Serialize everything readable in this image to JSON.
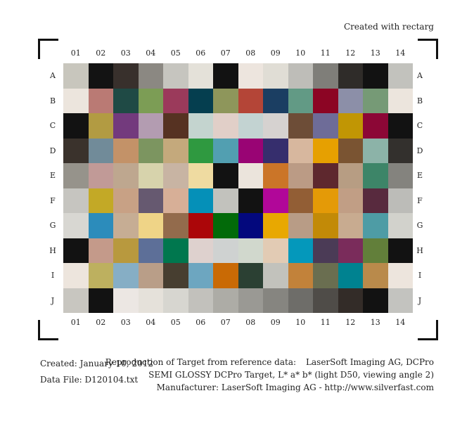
{
  "header": {
    "created_with": "Created with rectarg"
  },
  "columns": [
    "01",
    "02",
    "03",
    "04",
    "05",
    "06",
    "07",
    "08",
    "09",
    "10",
    "11",
    "12",
    "13",
    "14"
  ],
  "rows": [
    "A",
    "B",
    "C",
    "D",
    "E",
    "F",
    "G",
    "H",
    "I",
    "J"
  ],
  "patch_colors": [
    [
      "#c8c6bd",
      "#131313",
      "#38302c",
      "#8b8882",
      "#c6c5bf",
      "#e4e1d9",
      "#121212",
      "#ede5de",
      "#e0ddd5",
      "#bebdb8",
      "#7f7e79",
      "#2f2c29",
      "#121212",
      "#c2c2bd"
    ],
    [
      "#ece5dd",
      "#ba7a74",
      "#1f4a45",
      "#7c9d55",
      "#9b3a5b",
      "#053e4f",
      "#8e965b",
      "#b44537",
      "#1b3e62",
      "#629a85",
      "#8c0524",
      "#8c8fa8",
      "#769a76",
      "#ece5dd"
    ],
    [
      "#121212",
      "#b29b42",
      "#733a7d",
      "#b39cb1",
      "#563222",
      "#c4d4cf",
      "#e1cfc8",
      "#c3d3d2",
      "#d6d2d0",
      "#6d4d37",
      "#6e6c98",
      "#c19604",
      "#8c0736",
      "#121212"
    ],
    [
      "#3a322c",
      "#718b99",
      "#c39268",
      "#7c9560",
      "#c4a97c",
      "#2f9940",
      "#529fb1",
      "#990474",
      "#362e6d",
      "#d7b79e",
      "#e6a001",
      "#7a5432",
      "#8cb3a8",
      "#33302d"
    ],
    [
      "#96938b",
      "#c19a97",
      "#bea78f",
      "#d7d3ac",
      "#c8b4a3",
      "#efdba1",
      "#121212",
      "#ebe4dc",
      "#cb7528",
      "#bb9b85",
      "#5e282e",
      "#b79d83",
      "#3d8568",
      "#84837e"
    ],
    [
      "#c6c5c0",
      "#c3a926",
      "#c8a185",
      "#665970",
      "#d7af97",
      "#0590b8",
      "#c2c2bd",
      "#121212",
      "#b10799",
      "#925e35",
      "#e49a07",
      "#c19e85",
      "#582a3e",
      "#bcbcb8"
    ],
    [
      "#d8d7d2",
      "#2c8cbb",
      "#c6ad94",
      "#efd487",
      "#936b4c",
      "#ab0609",
      "#026a09",
      "#03087d",
      "#e8a801",
      "#b89c86",
      "#c28a07",
      "#c8ab90",
      "#4e9ca5",
      "#d2d2cc"
    ],
    [
      "#121212",
      "#c49a8a",
      "#b8993e",
      "#5d6f98",
      "#00774e",
      "#ded1ce",
      "#cfd2d1",
      "#d1d8cd",
      "#e2cbb4",
      "#0498bb",
      "#4b3b56",
      "#7a2c5b",
      "#627f3a",
      "#121212"
    ],
    [
      "#ede5dd",
      "#bdb05f",
      "#86aec5",
      "#b99e88",
      "#473e30",
      "#6da6c0",
      "#c96a05",
      "#2b4033",
      "#c2c2bc",
      "#c2823a",
      "#6a6e50",
      "#008290",
      "#b98a4b",
      "#ede5dd"
    ],
    [
      "#c8c6c0",
      "#121212",
      "#ece7e3",
      "#e5e1da",
      "#d7d6d0",
      "#c2c1bc",
      "#adaca6",
      "#9a9994",
      "#868580",
      "#6e6d69",
      "#4f4c48",
      "#332c28",
      "#121212",
      "#c3c3bf"
    ]
  ],
  "footer": {
    "created": "Created: January 10, 2012",
    "data_file": "Data File: D120104.txt",
    "reproduction_label": "Reproduction of Target from reference data:",
    "reproduction_value": "LaserSoft Imaging AG, DCPro",
    "target_desc": "SEMI GLOSSY DCPro Target, L* a* b* (light D50, viewing angle 2)",
    "manufacturer": "Manufacturer: LaserSoft Imaging AG - http://www.silverfast.com"
  }
}
